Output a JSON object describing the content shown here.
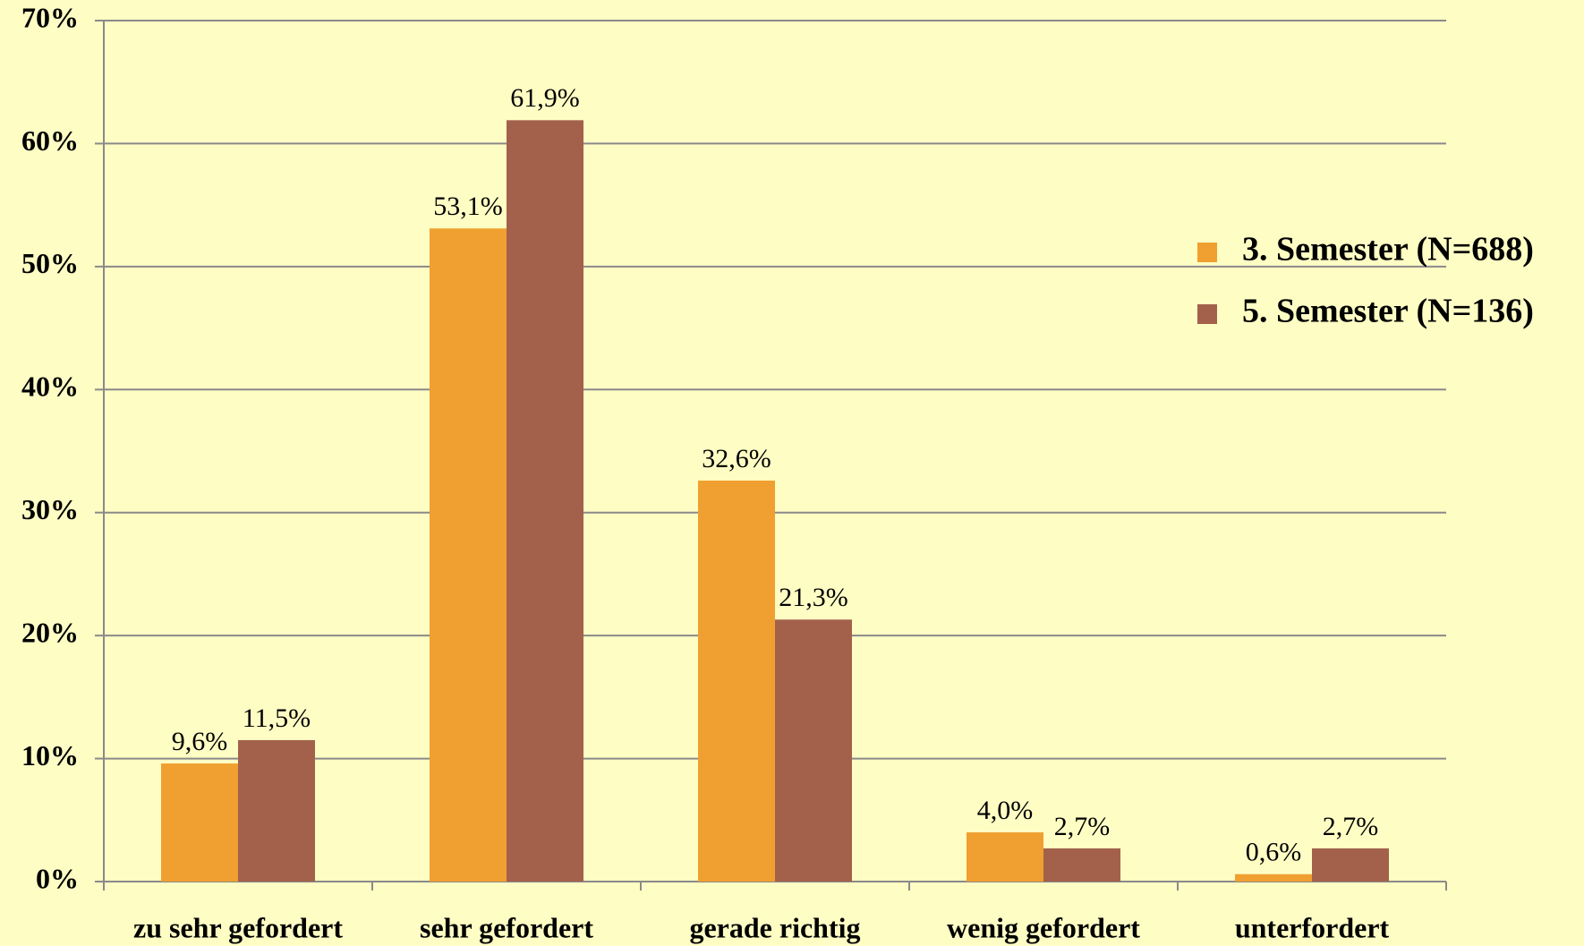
{
  "chart_data": {
    "type": "bar",
    "categories": [
      "zu sehr gefordert",
      "sehr gefordert",
      "gerade richtig",
      "wenig gefordert",
      "unterfordert"
    ],
    "series": [
      {
        "name": "3. Semester (N=688)",
        "color": "#f0a030",
        "values": [
          9.6,
          53.1,
          32.6,
          4.0,
          0.6
        ],
        "value_labels": [
          "9,6%",
          "53,1%",
          "32,6%",
          "4,0%",
          "0,6%"
        ]
      },
      {
        "name": "5. Semester (N=136)",
        "color": "#a3614c",
        "values": [
          11.5,
          61.9,
          21.3,
          2.7,
          2.7
        ],
        "value_labels": [
          "11,5%",
          "61,9%",
          "21,3%",
          "2,7%",
          "2,7%"
        ]
      }
    ],
    "ylim": [
      0,
      70
    ],
    "yticks": [
      {
        "value": 0,
        "label": "0%"
      },
      {
        "value": 10,
        "label": "10%"
      },
      {
        "value": 20,
        "label": "20%"
      },
      {
        "value": 30,
        "label": "30%"
      },
      {
        "value": 40,
        "label": "40%"
      },
      {
        "value": 50,
        "label": "50%"
      },
      {
        "value": 60,
        "label": "60%"
      },
      {
        "value": 70,
        "label": "70%"
      }
    ],
    "grid": true,
    "legend": "right"
  }
}
